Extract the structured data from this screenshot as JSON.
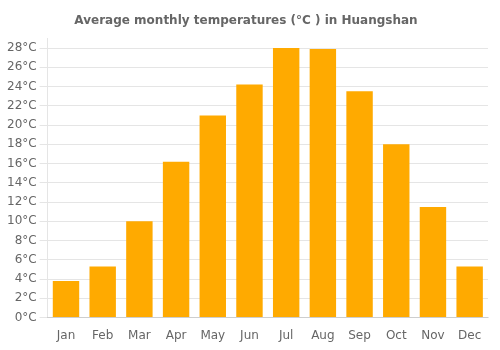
{
  "chart_data": {
    "type": "bar",
    "title": "Average monthly temperatures (°C ) in Huangshan",
    "categories": [
      "Jan",
      "Feb",
      "Mar",
      "Apr",
      "May",
      "Jun",
      "Jul",
      "Aug",
      "Sep",
      "Oct",
      "Nov",
      "Dec"
    ],
    "values": [
      3.8,
      5.3,
      10.0,
      16.2,
      21.0,
      24.2,
      28.0,
      27.9,
      23.5,
      18.0,
      11.5,
      5.3
    ],
    "color": "#FFAA00",
    "ylim": [
      0,
      29
    ],
    "yticks": [
      {
        "value": 0,
        "label": "0°C"
      },
      {
        "value": 2,
        "label": "2°C"
      },
      {
        "value": 4,
        "label": "4°C"
      },
      {
        "value": 6,
        "label": "6°C"
      },
      {
        "value": 8,
        "label": "8°C"
      },
      {
        "value": 10,
        "label": "10°C"
      },
      {
        "value": 12,
        "label": "12°C"
      },
      {
        "value": 14,
        "label": "14°C"
      },
      {
        "value": 16,
        "label": "16°C"
      },
      {
        "value": 18,
        "label": "18°C"
      },
      {
        "value": 20,
        "label": "20°C"
      },
      {
        "value": 22,
        "label": "22°C"
      },
      {
        "value": 24,
        "label": "24°C"
      },
      {
        "value": 26,
        "label": "26°C"
      },
      {
        "value": 28,
        "label": "28°C"
      }
    ],
    "grid": true
  }
}
